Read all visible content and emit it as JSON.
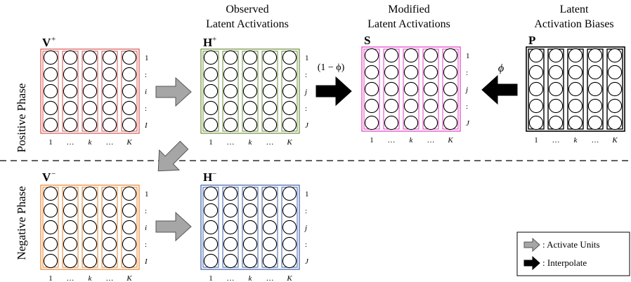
{
  "headings": {
    "observed": [
      "Observed",
      "Latent Activations"
    ],
    "modified": [
      "Modified",
      "Latent Activations"
    ],
    "biases": [
      "Latent",
      "Activation Biases"
    ]
  },
  "phases": {
    "positive": "Positive Phase",
    "negative": "Negative Phase"
  },
  "coefficients": {
    "one_minus_phi": "(1 − ϕ)",
    "phi": "ϕ"
  },
  "legend": {
    "activate": ": Activate Units",
    "interpolate": ": Interpolate"
  },
  "colors": {
    "v_plus": "#d9534f",
    "h_plus": "#6b8e3a",
    "s": "#e040c0",
    "p": "#000000",
    "v_minus": "#e8822a",
    "h_minus": "#3b5ea8",
    "activate_arrow": "#a6a6a6",
    "interpolate_arrow": "#000000"
  },
  "matrices": [
    {
      "id": "V+",
      "letter": "V",
      "sup": "+",
      "row_labels": [
        "1",
        ":",
        "i",
        ":",
        "I"
      ],
      "col_labels": [
        "1",
        "…",
        "k",
        "…",
        "K"
      ]
    },
    {
      "id": "H+",
      "letter": "H",
      "sup": "+",
      "row_labels": [
        "1",
        ":",
        "j",
        ":",
        "J"
      ],
      "col_labels": [
        "1",
        "…",
        "k",
        "…",
        "K"
      ]
    },
    {
      "id": "S",
      "letter": "S",
      "sup": "",
      "row_labels": [
        "1",
        ":",
        "j",
        ":",
        "J"
      ],
      "col_labels": [
        "1",
        "…",
        "k",
        "…",
        "K"
      ]
    },
    {
      "id": "P",
      "letter": "P",
      "sup": "",
      "row_labels": [],
      "col_labels": [
        "1",
        "…",
        "k",
        "…",
        "K"
      ]
    },
    {
      "id": "V-",
      "letter": "V",
      "sup": "−",
      "row_labels": [
        "1",
        ":",
        "i",
        ":",
        "I"
      ],
      "col_labels": [
        "1",
        "…",
        "k",
        "…",
        "K"
      ]
    },
    {
      "id": "H-",
      "letter": "H",
      "sup": "−",
      "row_labels": [
        "1",
        ":",
        "j",
        ":",
        "J"
      ],
      "col_labels": [
        "1",
        "…",
        "k",
        "…",
        "K"
      ]
    }
  ]
}
